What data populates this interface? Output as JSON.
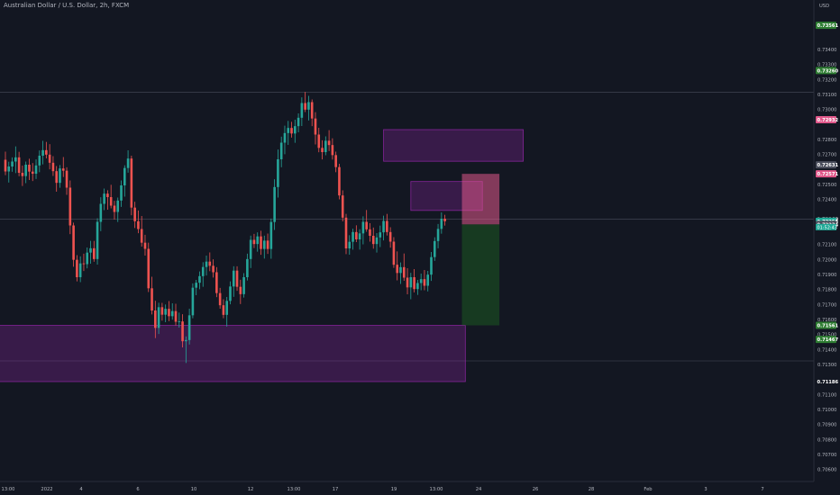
{
  "header": {
    "symbol_title": "Australian Dollar / U.S. Dollar, 2h, FXCM"
  },
  "price_axis": {
    "currency_label": "USD",
    "ticks": [
      "0.73400",
      "0.73300",
      "0.73200",
      "0.73100",
      "0.73000",
      "0.72800",
      "0.72700",
      "0.72500",
      "0.72400",
      "0.72100",
      "0.72000",
      "0.71900",
      "0.71800",
      "0.71700",
      "0.71600",
      "0.71500",
      "0.71400",
      "0.71300",
      "0.71100",
      "0.71000",
      "0.70900",
      "0.70800",
      "0.70700",
      "0.70600"
    ],
    "badges": [
      {
        "text": "0.73561",
        "value": 0.73561,
        "color": "#2e7d32"
      },
      {
        "text": "0.73260",
        "value": 0.7326,
        "color": "#2e7d32"
      },
      {
        "text": "0.72932",
        "value": 0.72932,
        "color": "#e0578a"
      },
      {
        "text": "0.72631",
        "value": 0.72631,
        "color": "#4a4e5c"
      },
      {
        "text": "0.72571",
        "value": 0.72571,
        "color": "#e0578a"
      },
      {
        "text": "0.72268",
        "value": 0.72268,
        "color": "#131722",
        "fg": "#ffffff"
      },
      {
        "text": "0.72255",
        "value": 0.72255,
        "color": "#1ea896"
      },
      {
        "text": "0.72234",
        "value": 0.72234,
        "color": "#4a4e5c"
      },
      {
        "text": "0.71561",
        "value": 0.71561,
        "color": "#2e7d32"
      },
      {
        "text": "0.71467",
        "value": 0.71467,
        "color": "#2e7d32"
      },
      {
        "text": "0.71186",
        "value": 0.71186,
        "color": "#131722",
        "fg": "#ffffff"
      }
    ],
    "countdown": "01:52:43"
  },
  "time_axis": {
    "labels": [
      "13:00",
      "2022",
      "4",
      "6",
      "10",
      "12",
      "13:00",
      "17",
      "19",
      "13:00",
      "24",
      "26",
      "28",
      "Feb",
      "3",
      "7"
    ]
  },
  "chart_data": {
    "type": "candlestick",
    "symbol": "Australian Dollar / U.S. Dollar",
    "interval": "2h",
    "exchange": "FXCM",
    "y_range": [
      0.7052,
      0.7373
    ],
    "x_domain_candles": 160,
    "last_price": 0.72255,
    "zones": [
      {
        "x0": 111,
        "x1": 152,
        "y0": 0.72866,
        "y1": 0.72655,
        "color": "#9c27b0"
      },
      {
        "x0": 119,
        "x1": 140,
        "y0": 0.7252,
        "y1": 0.72327,
        "color": "#9c27b0"
      },
      {
        "x0": -9,
        "x1": 135,
        "y0": 0.71561,
        "y1": 0.71186,
        "color": "#9c27b0"
      }
    ],
    "position": {
      "type": "short",
      "x0": 134,
      "x1": 145,
      "entry": 0.72234,
      "stop": 0.72571,
      "target": 0.71561
    },
    "horizontal_lines": [
      0.73116,
      0.72268,
      0.71324
    ],
    "candles": [
      {
        "o": 0.72665,
        "h": 0.72719,
        "l": 0.72562,
        "c": 0.72587
      },
      {
        "o": 0.72587,
        "h": 0.72652,
        "l": 0.72513,
        "c": 0.7262
      },
      {
        "o": 0.7262,
        "h": 0.72681,
        "l": 0.72585,
        "c": 0.72653
      },
      {
        "o": 0.72653,
        "h": 0.72754,
        "l": 0.72576,
        "c": 0.72681
      },
      {
        "o": 0.72681,
        "h": 0.72718,
        "l": 0.72555,
        "c": 0.72578
      },
      {
        "o": 0.72578,
        "h": 0.72626,
        "l": 0.7249,
        "c": 0.72556
      },
      {
        "o": 0.72556,
        "h": 0.72653,
        "l": 0.72509,
        "c": 0.72632
      },
      {
        "o": 0.72632,
        "h": 0.72672,
        "l": 0.7253,
        "c": 0.72586
      },
      {
        "o": 0.72586,
        "h": 0.72643,
        "l": 0.72523,
        "c": 0.72572
      },
      {
        "o": 0.72572,
        "h": 0.72667,
        "l": 0.72537,
        "c": 0.72627
      },
      {
        "o": 0.72627,
        "h": 0.72727,
        "l": 0.72582,
        "c": 0.72692
      },
      {
        "o": 0.72692,
        "h": 0.72791,
        "l": 0.72634,
        "c": 0.72729
      },
      {
        "o": 0.72729,
        "h": 0.72784,
        "l": 0.72674,
        "c": 0.72699
      },
      {
        "o": 0.72699,
        "h": 0.72769,
        "l": 0.72601,
        "c": 0.72645
      },
      {
        "o": 0.72645,
        "h": 0.72689,
        "l": 0.72557,
        "c": 0.72589
      },
      {
        "o": 0.72589,
        "h": 0.72623,
        "l": 0.72452,
        "c": 0.72511
      },
      {
        "o": 0.72511,
        "h": 0.7263,
        "l": 0.72478,
        "c": 0.72607
      },
      {
        "o": 0.72607,
        "h": 0.72683,
        "l": 0.7255,
        "c": 0.72592
      },
      {
        "o": 0.72592,
        "h": 0.72615,
        "l": 0.72431,
        "c": 0.72479
      },
      {
        "o": 0.72479,
        "h": 0.72527,
        "l": 0.72169,
        "c": 0.72227
      },
      {
        "o": 0.72227,
        "h": 0.72246,
        "l": 0.71952,
        "c": 0.71998
      },
      {
        "o": 0.71998,
        "h": 0.72029,
        "l": 0.71854,
        "c": 0.71882
      },
      {
        "o": 0.71882,
        "h": 0.72021,
        "l": 0.71849,
        "c": 0.71974
      },
      {
        "o": 0.71974,
        "h": 0.72039,
        "l": 0.71923,
        "c": 0.71969
      },
      {
        "o": 0.71969,
        "h": 0.7208,
        "l": 0.71941,
        "c": 0.72046
      },
      {
        "o": 0.72046,
        "h": 0.72124,
        "l": 0.71972,
        "c": 0.72075
      },
      {
        "o": 0.72075,
        "h": 0.72124,
        "l": 0.71985,
        "c": 0.72003
      },
      {
        "o": 0.72003,
        "h": 0.72275,
        "l": 0.71966,
        "c": 0.72251
      },
      {
        "o": 0.72251,
        "h": 0.72415,
        "l": 0.72189,
        "c": 0.72371
      },
      {
        "o": 0.72371,
        "h": 0.72473,
        "l": 0.72329,
        "c": 0.72439
      },
      {
        "o": 0.72439,
        "h": 0.72462,
        "l": 0.72332,
        "c": 0.72416
      },
      {
        "o": 0.72416,
        "h": 0.72498,
        "l": 0.72341,
        "c": 0.72359
      },
      {
        "o": 0.72359,
        "h": 0.72391,
        "l": 0.72266,
        "c": 0.72317
      },
      {
        "o": 0.72317,
        "h": 0.72413,
        "l": 0.7225,
        "c": 0.72393
      },
      {
        "o": 0.72393,
        "h": 0.72527,
        "l": 0.72351,
        "c": 0.72494
      },
      {
        "o": 0.72494,
        "h": 0.72628,
        "l": 0.72419,
        "c": 0.7261
      },
      {
        "o": 0.7261,
        "h": 0.72728,
        "l": 0.72579,
        "c": 0.72673
      },
      {
        "o": 0.72673,
        "h": 0.72692,
        "l": 0.72295,
        "c": 0.72346
      },
      {
        "o": 0.72346,
        "h": 0.72385,
        "l": 0.7221,
        "c": 0.72255
      },
      {
        "o": 0.72255,
        "h": 0.72327,
        "l": 0.72175,
        "c": 0.72203
      },
      {
        "o": 0.72203,
        "h": 0.7229,
        "l": 0.72086,
        "c": 0.72112
      },
      {
        "o": 0.72112,
        "h": 0.72165,
        "l": 0.72026,
        "c": 0.72071
      },
      {
        "o": 0.72071,
        "h": 0.72112,
        "l": 0.71783,
        "c": 0.71808
      },
      {
        "o": 0.71808,
        "h": 0.71885,
        "l": 0.71634,
        "c": 0.7166
      },
      {
        "o": 0.7166,
        "h": 0.71725,
        "l": 0.71476,
        "c": 0.71544
      },
      {
        "o": 0.71544,
        "h": 0.71712,
        "l": 0.71503,
        "c": 0.71682
      },
      {
        "o": 0.71682,
        "h": 0.71711,
        "l": 0.71592,
        "c": 0.71632
      },
      {
        "o": 0.71632,
        "h": 0.717,
        "l": 0.71582,
        "c": 0.71671
      },
      {
        "o": 0.71671,
        "h": 0.71723,
        "l": 0.71589,
        "c": 0.71622
      },
      {
        "o": 0.71622,
        "h": 0.71708,
        "l": 0.71599,
        "c": 0.71656
      },
      {
        "o": 0.71656,
        "h": 0.71705,
        "l": 0.7156,
        "c": 0.71585
      },
      {
        "o": 0.71585,
        "h": 0.71646,
        "l": 0.71546,
        "c": 0.71587
      },
      {
        "o": 0.71587,
        "h": 0.71635,
        "l": 0.71414,
        "c": 0.71455
      },
      {
        "o": 0.71455,
        "h": 0.71487,
        "l": 0.7131,
        "c": 0.71463
      },
      {
        "o": 0.71463,
        "h": 0.71672,
        "l": 0.71433,
        "c": 0.71628
      },
      {
        "o": 0.71628,
        "h": 0.71841,
        "l": 0.71608,
        "c": 0.71812
      },
      {
        "o": 0.71812,
        "h": 0.71864,
        "l": 0.71762,
        "c": 0.71845
      },
      {
        "o": 0.71845,
        "h": 0.7192,
        "l": 0.71802,
        "c": 0.71889
      },
      {
        "o": 0.71889,
        "h": 0.71982,
        "l": 0.71818,
        "c": 0.7195
      },
      {
        "o": 0.7195,
        "h": 0.72026,
        "l": 0.71893,
        "c": 0.71986
      },
      {
        "o": 0.71986,
        "h": 0.72047,
        "l": 0.71922,
        "c": 0.71958
      },
      {
        "o": 0.71958,
        "h": 0.72001,
        "l": 0.7188,
        "c": 0.71915
      },
      {
        "o": 0.71915,
        "h": 0.71949,
        "l": 0.71749,
        "c": 0.71776
      },
      {
        "o": 0.71776,
        "h": 0.71811,
        "l": 0.71672,
        "c": 0.71695
      },
      {
        "o": 0.71695,
        "h": 0.71735,
        "l": 0.71608,
        "c": 0.71631
      },
      {
        "o": 0.71631,
        "h": 0.7175,
        "l": 0.71553,
        "c": 0.71724
      },
      {
        "o": 0.71724,
        "h": 0.71854,
        "l": 0.71701,
        "c": 0.7182
      },
      {
        "o": 0.7182,
        "h": 0.71955,
        "l": 0.71751,
        "c": 0.71926
      },
      {
        "o": 0.71926,
        "h": 0.71955,
        "l": 0.71791,
        "c": 0.71818
      },
      {
        "o": 0.71818,
        "h": 0.71865,
        "l": 0.71703,
        "c": 0.71769
      },
      {
        "o": 0.71769,
        "h": 0.71909,
        "l": 0.71746,
        "c": 0.71882
      },
      {
        "o": 0.71882,
        "h": 0.72039,
        "l": 0.7186,
        "c": 0.72003
      },
      {
        "o": 0.72003,
        "h": 0.72159,
        "l": 0.71943,
        "c": 0.72131
      },
      {
        "o": 0.72131,
        "h": 0.72171,
        "l": 0.72076,
        "c": 0.72103
      },
      {
        "o": 0.72103,
        "h": 0.72181,
        "l": 0.72052,
        "c": 0.72154
      },
      {
        "o": 0.72154,
        "h": 0.72192,
        "l": 0.72031,
        "c": 0.7207
      },
      {
        "o": 0.7207,
        "h": 0.72159,
        "l": 0.72006,
        "c": 0.72126
      },
      {
        "o": 0.72126,
        "h": 0.72173,
        "l": 0.72037,
        "c": 0.7207
      },
      {
        "o": 0.7207,
        "h": 0.72273,
        "l": 0.72005,
        "c": 0.7225
      },
      {
        "o": 0.7225,
        "h": 0.72535,
        "l": 0.72197,
        "c": 0.72483
      },
      {
        "o": 0.72483,
        "h": 0.72733,
        "l": 0.72413,
        "c": 0.72668
      },
      {
        "o": 0.72668,
        "h": 0.72819,
        "l": 0.72615,
        "c": 0.72779
      },
      {
        "o": 0.72779,
        "h": 0.72892,
        "l": 0.72702,
        "c": 0.72843
      },
      {
        "o": 0.72843,
        "h": 0.72924,
        "l": 0.72764,
        "c": 0.72877
      },
      {
        "o": 0.72877,
        "h": 0.72918,
        "l": 0.72813,
        "c": 0.7284
      },
      {
        "o": 0.7284,
        "h": 0.72932,
        "l": 0.72778,
        "c": 0.72889
      },
      {
        "o": 0.72889,
        "h": 0.72974,
        "l": 0.72848,
        "c": 0.72945
      },
      {
        "o": 0.72945,
        "h": 0.73081,
        "l": 0.7289,
        "c": 0.73043
      },
      {
        "o": 0.73043,
        "h": 0.73117,
        "l": 0.72983,
        "c": 0.72999
      },
      {
        "o": 0.72999,
        "h": 0.73091,
        "l": 0.72927,
        "c": 0.73049
      },
      {
        "o": 0.73049,
        "h": 0.73067,
        "l": 0.72889,
        "c": 0.7294
      },
      {
        "o": 0.7294,
        "h": 0.72982,
        "l": 0.72767,
        "c": 0.72833
      },
      {
        "o": 0.72833,
        "h": 0.72878,
        "l": 0.72715,
        "c": 0.72744
      },
      {
        "o": 0.72744,
        "h": 0.72795,
        "l": 0.72667,
        "c": 0.72716
      },
      {
        "o": 0.72716,
        "h": 0.72821,
        "l": 0.72695,
        "c": 0.72792
      },
      {
        "o": 0.72792,
        "h": 0.72862,
        "l": 0.72723,
        "c": 0.72763
      },
      {
        "o": 0.72763,
        "h": 0.72808,
        "l": 0.72666,
        "c": 0.72696
      },
      {
        "o": 0.72696,
        "h": 0.72719,
        "l": 0.72582,
        "c": 0.72616
      },
      {
        "o": 0.72616,
        "h": 0.72638,
        "l": 0.72401,
        "c": 0.72427
      },
      {
        "o": 0.72427,
        "h": 0.72461,
        "l": 0.72254,
        "c": 0.72279
      },
      {
        "o": 0.72279,
        "h": 0.72304,
        "l": 0.72036,
        "c": 0.72074
      },
      {
        "o": 0.72074,
        "h": 0.72162,
        "l": 0.72032,
        "c": 0.72118
      },
      {
        "o": 0.72118,
        "h": 0.72205,
        "l": 0.72066,
        "c": 0.72183
      },
      {
        "o": 0.72183,
        "h": 0.72228,
        "l": 0.72116,
        "c": 0.72134
      },
      {
        "o": 0.72134,
        "h": 0.72202,
        "l": 0.72066,
        "c": 0.72174
      },
      {
        "o": 0.72174,
        "h": 0.72288,
        "l": 0.72101,
        "c": 0.72251
      },
      {
        "o": 0.72251,
        "h": 0.7233,
        "l": 0.72185,
        "c": 0.72201
      },
      {
        "o": 0.72201,
        "h": 0.72242,
        "l": 0.72119,
        "c": 0.72158
      },
      {
        "o": 0.72158,
        "h": 0.72213,
        "l": 0.72072,
        "c": 0.72103
      },
      {
        "o": 0.72103,
        "h": 0.72176,
        "l": 0.72046,
        "c": 0.72147
      },
      {
        "o": 0.72147,
        "h": 0.72226,
        "l": 0.72083,
        "c": 0.72181
      },
      {
        "o": 0.72181,
        "h": 0.72292,
        "l": 0.72127,
        "c": 0.72257
      },
      {
        "o": 0.72257,
        "h": 0.72304,
        "l": 0.7216,
        "c": 0.72183
      },
      {
        "o": 0.72183,
        "h": 0.72215,
        "l": 0.72079,
        "c": 0.72119
      },
      {
        "o": 0.72119,
        "h": 0.72149,
        "l": 0.71944,
        "c": 0.71965
      },
      {
        "o": 0.71965,
        "h": 0.72054,
        "l": 0.71861,
        "c": 0.7191
      },
      {
        "o": 0.7191,
        "h": 0.7198,
        "l": 0.71837,
        "c": 0.71949
      },
      {
        "o": 0.71949,
        "h": 0.7204,
        "l": 0.71858,
        "c": 0.71879
      },
      {
        "o": 0.71879,
        "h": 0.71942,
        "l": 0.71768,
        "c": 0.71814
      },
      {
        "o": 0.71814,
        "h": 0.71911,
        "l": 0.71735,
        "c": 0.71882
      },
      {
        "o": 0.71882,
        "h": 0.71936,
        "l": 0.71781,
        "c": 0.71803
      },
      {
        "o": 0.71803,
        "h": 0.71864,
        "l": 0.71764,
        "c": 0.71843
      },
      {
        "o": 0.71843,
        "h": 0.71906,
        "l": 0.71795,
        "c": 0.71869
      },
      {
        "o": 0.71869,
        "h": 0.7193,
        "l": 0.71795,
        "c": 0.71825
      },
      {
        "o": 0.71825,
        "h": 0.71924,
        "l": 0.71787,
        "c": 0.71899
      },
      {
        "o": 0.71899,
        "h": 0.7205,
        "l": 0.71857,
        "c": 0.72016
      },
      {
        "o": 0.72016,
        "h": 0.72148,
        "l": 0.71991,
        "c": 0.72123
      },
      {
        "o": 0.72123,
        "h": 0.72237,
        "l": 0.72075,
        "c": 0.72204
      },
      {
        "o": 0.72204,
        "h": 0.72314,
        "l": 0.72172,
        "c": 0.72272
      },
      {
        "o": 0.72272,
        "h": 0.72298,
        "l": 0.72226,
        "c": 0.72255
      }
    ]
  }
}
